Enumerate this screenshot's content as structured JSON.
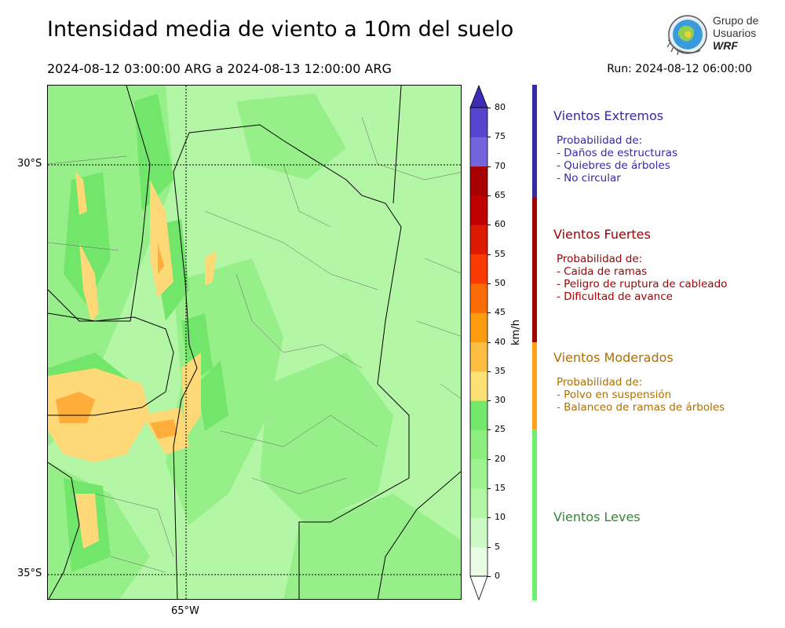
{
  "header": {
    "title": "Intensidad media de viento a 10m del suelo",
    "period": "2024-08-12 03:00:00 ARG  a  2024-08-13 12:00:00 ARG",
    "run": "Run: 2024-08-12 06:00:00"
  },
  "logo": {
    "line1": "Grupo de",
    "line2": "Usuarios",
    "line3": "WRF"
  },
  "map": {
    "lat_labels": [
      "30°S",
      "35°S"
    ],
    "lon_labels": [
      "65°W"
    ],
    "colors": {
      "light": "#b3f7a6",
      "mid": "#8fef82",
      "strong": "#6ee566",
      "moderate": "#ffd877",
      "orange": "#ffae3c"
    }
  },
  "colorbar": {
    "unit": "km/h",
    "levels": [
      "0",
      "5",
      "10",
      "15",
      "20",
      "25",
      "30",
      "35",
      "40",
      "45",
      "50",
      "55",
      "60",
      "65",
      "70",
      "75",
      "80"
    ],
    "colors": [
      "#e8fde4",
      "#cdf9c4",
      "#b3f7a6",
      "#9ef292",
      "#8bee7e",
      "#72e96a",
      "#fde174",
      "#fdbd40",
      "#fb9b0d",
      "#fb6b06",
      "#fc3a00",
      "#dc1a00",
      "#c00000",
      "#a80000",
      "#7465dc",
      "#5644cc",
      "#3d2db6"
    ]
  },
  "categories": [
    {
      "title": "Vientos Extremos",
      "color": "#3629a8",
      "lines": [
        "Probabilidad de:",
        "- Daños de estructuras",
        "- Quiebres de árboles",
        "- No circular"
      ]
    },
    {
      "title": "Vientos Fuertes",
      "color": "#a30000",
      "lines": [
        "Probabilidad de:",
        "- Caida de ramas",
        "- Peligro de ruptura de cableado",
        "- Dificultad de avance"
      ]
    },
    {
      "title": "Vientos Moderados",
      "color": "#b06e00",
      "bar_color": "#ffa21a",
      "lines": [
        "Probabilidad de:",
        "- Polvo en suspensión",
        "- Balanceo de ramas de árboles"
      ]
    },
    {
      "title": "Vientos Leves",
      "color": "#2e8b2e",
      "bar_color": "#6ef06e",
      "lines": []
    }
  ]
}
